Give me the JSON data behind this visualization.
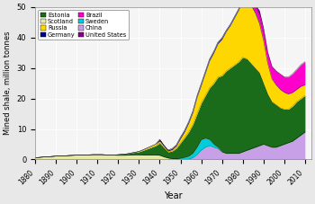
{
  "years": [
    1880,
    1882,
    1884,
    1886,
    1888,
    1890,
    1892,
    1894,
    1896,
    1898,
    1900,
    1902,
    1904,
    1906,
    1908,
    1910,
    1912,
    1914,
    1916,
    1918,
    1920,
    1922,
    1924,
    1926,
    1928,
    1930,
    1932,
    1934,
    1936,
    1938,
    1940,
    1942,
    1944,
    1946,
    1948,
    1950,
    1952,
    1954,
    1956,
    1958,
    1960,
    1962,
    1964,
    1966,
    1968,
    1970,
    1972,
    1974,
    1976,
    1978,
    1980,
    1982,
    1984,
    1986,
    1988,
    1990,
    1992,
    1994,
    1996,
    1998,
    2000,
    2002,
    2004,
    2006,
    2008,
    2010
  ],
  "scotland": [
    0.6,
    0.7,
    0.8,
    0.9,
    1.0,
    1.1,
    1.15,
    1.2,
    1.3,
    1.35,
    1.4,
    1.45,
    1.5,
    1.55,
    1.6,
    1.6,
    1.6,
    1.55,
    1.5,
    1.45,
    1.4,
    1.4,
    1.45,
    1.5,
    1.55,
    1.55,
    1.5,
    1.5,
    1.5,
    1.5,
    1.4,
    0.9,
    0.5,
    0.3,
    0.2,
    0.15,
    0.1,
    0.1,
    0.1,
    0.05,
    0.0,
    0.0,
    0.0,
    0.0,
    0.0,
    0.0,
    0.0,
    0.0,
    0.0,
    0.0,
    0.0,
    0.0,
    0.0,
    0.0,
    0.0,
    0.0,
    0.0,
    0.0,
    0.0,
    0.0,
    0.0,
    0.0,
    0.0,
    0.0,
    0.0,
    0.0
  ],
  "china": [
    0.0,
    0.0,
    0.0,
    0.0,
    0.0,
    0.0,
    0.0,
    0.0,
    0.0,
    0.0,
    0.0,
    0.0,
    0.0,
    0.0,
    0.0,
    0.0,
    0.0,
    0.0,
    0.0,
    0.0,
    0.0,
    0.0,
    0.0,
    0.0,
    0.0,
    0.0,
    0.0,
    0.0,
    0.0,
    0.0,
    0.0,
    0.0,
    0.0,
    0.0,
    0.0,
    0.0,
    0.0,
    0.0,
    0.5,
    1.5,
    3.0,
    4.0,
    4.5,
    4.0,
    3.5,
    2.5,
    2.0,
    2.0,
    2.0,
    2.0,
    2.5,
    3.0,
    3.5,
    4.0,
    4.5,
    5.0,
    4.5,
    4.0,
    4.0,
    4.5,
    5.0,
    5.5,
    6.0,
    7.0,
    8.0,
    9.0
  ],
  "sweden": [
    0.0,
    0.0,
    0.0,
    0.0,
    0.0,
    0.0,
    0.0,
    0.0,
    0.0,
    0.0,
    0.0,
    0.0,
    0.0,
    0.0,
    0.0,
    0.0,
    0.0,
    0.0,
    0.0,
    0.0,
    0.0,
    0.0,
    0.0,
    0.0,
    0.0,
    0.0,
    0.0,
    0.0,
    0.0,
    0.0,
    0.0,
    0.0,
    0.0,
    0.0,
    0.0,
    0.3,
    0.6,
    1.0,
    1.5,
    2.5,
    3.5,
    3.0,
    2.0,
    1.0,
    0.5,
    0.0,
    0.0,
    0.0,
    0.0,
    0.0,
    0.0,
    0.0,
    0.0,
    0.0,
    0.0,
    0.0,
    0.0,
    0.0,
    0.0,
    0.0,
    0.0,
    0.0,
    0.0,
    0.0,
    0.0,
    0.0
  ],
  "estonia": [
    0.0,
    0.0,
    0.0,
    0.0,
    0.0,
    0.0,
    0.0,
    0.0,
    0.0,
    0.0,
    0.0,
    0.0,
    0.0,
    0.0,
    0.0,
    0.0,
    0.0,
    0.0,
    0.0,
    0.0,
    0.2,
    0.3,
    0.4,
    0.6,
    0.8,
    1.0,
    1.5,
    2.0,
    2.5,
    3.0,
    4.0,
    3.0,
    2.0,
    2.5,
    3.5,
    5.0,
    6.5,
    8.0,
    9.5,
    11.0,
    12.0,
    14.0,
    17.0,
    20.0,
    23.0,
    25.0,
    27.0,
    28.0,
    29.0,
    30.0,
    31.0,
    30.0,
    28.0,
    26.0,
    24.0,
    20.0,
    17.0,
    15.0,
    14.0,
    12.5,
    11.5,
    11.0,
    11.5,
    12.0,
    12.0,
    12.0
  ],
  "russia": [
    0.0,
    0.0,
    0.0,
    0.0,
    0.0,
    0.0,
    0.0,
    0.0,
    0.0,
    0.0,
    0.0,
    0.0,
    0.0,
    0.0,
    0.0,
    0.0,
    0.0,
    0.0,
    0.0,
    0.0,
    0.0,
    0.0,
    0.0,
    0.0,
    0.0,
    0.1,
    0.2,
    0.3,
    0.4,
    0.5,
    0.7,
    0.5,
    0.3,
    0.5,
    0.8,
    1.5,
    2.0,
    3.0,
    4.0,
    5.5,
    6.0,
    7.5,
    9.0,
    10.0,
    11.0,
    12.0,
    13.0,
    14.0,
    15.5,
    17.0,
    19.0,
    20.0,
    19.0,
    18.0,
    16.0,
    14.0,
    10.0,
    7.5,
    6.5,
    6.0,
    5.5,
    5.0,
    4.5,
    4.0,
    4.0,
    3.5
  ],
  "germany": [
    0.0,
    0.0,
    0.0,
    0.0,
    0.0,
    0.0,
    0.0,
    0.0,
    0.0,
    0.0,
    0.0,
    0.0,
    0.0,
    0.0,
    0.0,
    0.0,
    0.0,
    0.0,
    0.0,
    0.0,
    0.0,
    0.0,
    0.0,
    0.0,
    0.0,
    0.0,
    0.0,
    0.0,
    0.0,
    0.0,
    0.5,
    0.3,
    0.3,
    0.3,
    0.3,
    0.4,
    0.4,
    0.4,
    0.4,
    0.4,
    0.4,
    0.4,
    0.4,
    0.4,
    0.4,
    0.4,
    0.3,
    0.3,
    0.3,
    0.3,
    0.3,
    0.3,
    0.3,
    0.3,
    0.3,
    0.2,
    0.0,
    0.0,
    0.0,
    0.0,
    0.0,
    0.0,
    0.0,
    0.0,
    0.0,
    0.0
  ],
  "brazil": [
    0.0,
    0.0,
    0.0,
    0.0,
    0.0,
    0.0,
    0.0,
    0.0,
    0.0,
    0.0,
    0.0,
    0.0,
    0.0,
    0.0,
    0.0,
    0.0,
    0.0,
    0.0,
    0.0,
    0.0,
    0.0,
    0.0,
    0.0,
    0.0,
    0.0,
    0.0,
    0.0,
    0.0,
    0.0,
    0.0,
    0.0,
    0.0,
    0.0,
    0.0,
    0.0,
    0.0,
    0.0,
    0.0,
    0.0,
    0.0,
    0.0,
    0.0,
    0.0,
    0.0,
    0.0,
    0.0,
    0.0,
    0.0,
    0.0,
    0.0,
    0.5,
    1.0,
    1.5,
    2.0,
    2.5,
    3.0,
    3.5,
    4.0,
    4.5,
    5.0,
    5.0,
    5.5,
    6.0,
    6.5,
    7.0,
    7.5
  ],
  "us": [
    0.0,
    0.0,
    0.0,
    0.0,
    0.0,
    0.0,
    0.0,
    0.0,
    0.0,
    0.0,
    0.0,
    0.0,
    0.0,
    0.0,
    0.0,
    0.0,
    0.0,
    0.0,
    0.0,
    0.0,
    0.0,
    0.0,
    0.0,
    0.0,
    0.0,
    0.0,
    0.0,
    0.0,
    0.0,
    0.0,
    0.0,
    0.0,
    0.0,
    0.0,
    0.0,
    0.0,
    0.0,
    0.0,
    0.0,
    0.0,
    0.0,
    0.0,
    0.0,
    0.0,
    0.0,
    0.0,
    0.0,
    0.0,
    0.0,
    0.0,
    0.5,
    0.5,
    0.5,
    0.5,
    1.5,
    0.8,
    0.2,
    0.1,
    0.1,
    0.1,
    0.1,
    0.1,
    0.1,
    0.1,
    0.1,
    0.1
  ],
  "colors": {
    "estonia": "#1a6b1a",
    "russia": "#FFD700",
    "brazil": "#FF00CC",
    "china": "#C8A0E8",
    "scotland": "#E8E8A0",
    "germany": "#000080",
    "sweden": "#00CCDD",
    "us": "#880088"
  },
  "ylabel": "Mined shale, million tonnes",
  "xlabel": "Year",
  "ylim": [
    0,
    50
  ],
  "xlim": [
    1880,
    2013
  ],
  "yticks": [
    0,
    10,
    20,
    30,
    40,
    50
  ],
  "xticks": [
    1880,
    1890,
    1900,
    1910,
    1920,
    1930,
    1940,
    1950,
    1960,
    1970,
    1980,
    1990,
    2000,
    2010
  ]
}
